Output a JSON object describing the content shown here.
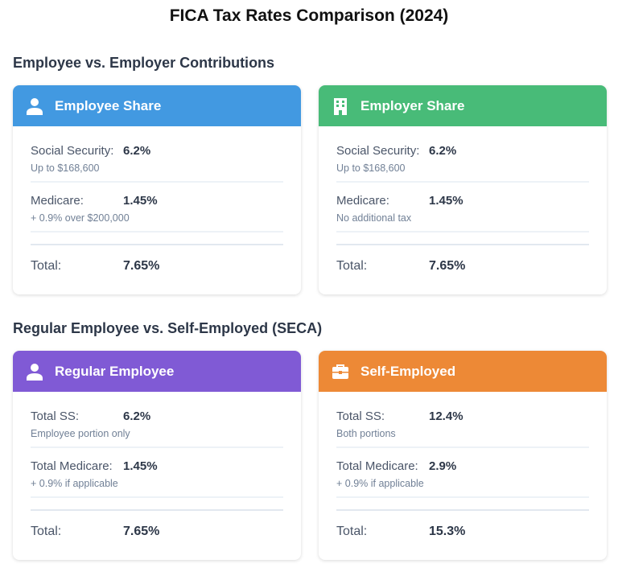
{
  "title": "FICA Tax Rates Comparison (2024)",
  "sections": [
    {
      "heading": "Employee vs. Employer Contributions",
      "cards": [
        {
          "title": "Employee Share",
          "icon": "user-tie-icon",
          "color": "#4299e1",
          "rows": [
            {
              "label": "Social Security:",
              "value": "6.2%",
              "note": "Up to $168,600"
            },
            {
              "label": "Medicare:",
              "value": "1.45%",
              "note": "+ 0.9% over $200,000"
            }
          ],
          "total_label": "Total:",
          "total_value": "7.65%"
        },
        {
          "title": "Employer Share",
          "icon": "building-icon",
          "color": "#48bb78",
          "rows": [
            {
              "label": "Social Security:",
              "value": "6.2%",
              "note": "Up to $168,600"
            },
            {
              "label": "Medicare:",
              "value": "1.45%",
              "note": "No additional tax"
            }
          ],
          "total_label": "Total:",
          "total_value": "7.65%"
        }
      ]
    },
    {
      "heading": "Regular Employee vs. Self-Employed (SECA)",
      "cards": [
        {
          "title": "Regular Employee",
          "icon": "user-icon",
          "color": "#805ad5",
          "rows": [
            {
              "label": "Total SS:",
              "value": "6.2%",
              "note": "Employee portion only"
            },
            {
              "label": "Total Medicare:",
              "value": "1.45%",
              "note": "+ 0.9% if applicable"
            }
          ],
          "total_label": "Total:",
          "total_value": "7.65%"
        },
        {
          "title": "Self-Employed",
          "icon": "briefcase-icon",
          "color": "#ed8936",
          "rows": [
            {
              "label": "Total SS:",
              "value": "12.4%",
              "note": "Both portions"
            },
            {
              "label": "Total Medicare:",
              "value": "2.9%",
              "note": "+ 0.9% if applicable"
            }
          ],
          "total_label": "Total:",
          "total_value": "15.3%"
        }
      ]
    }
  ]
}
